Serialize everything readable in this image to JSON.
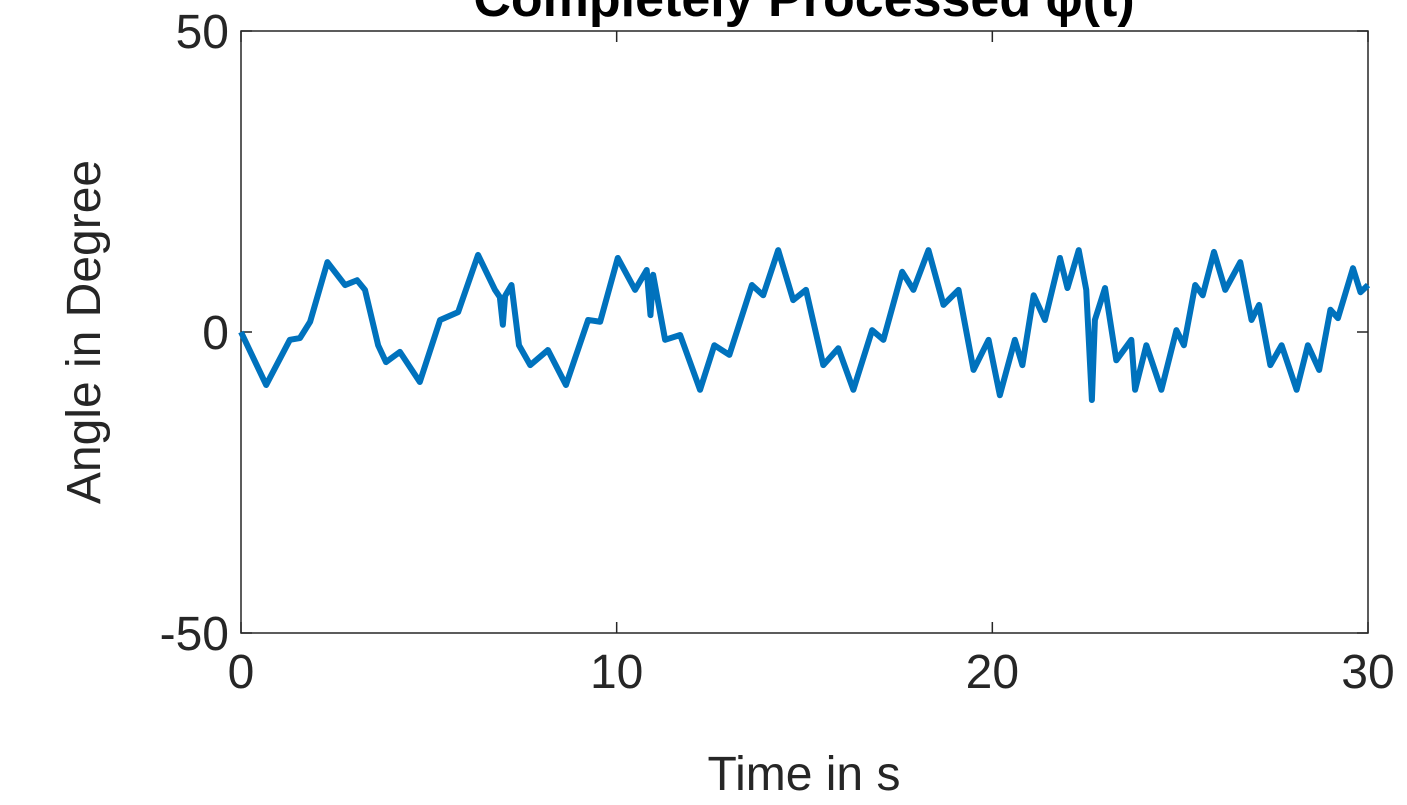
{
  "chart_data": {
    "type": "line",
    "title": "Completely Processed φ(t)",
    "xlabel": "Time in s",
    "ylabel": "Angle in Degree",
    "x": [
      0,
      0.67,
      1.3,
      1.57,
      1.84,
      2.3,
      2.77,
      3.09,
      3.3,
      3.65,
      3.86,
      4.23,
      4.76,
      5.3,
      5.78,
      6.31,
      6.76,
      6.89,
      6.97,
      7.03,
      7.2,
      7.4,
      7.7,
      8.17,
      8.65,
      9.24,
      9.56,
      10.03,
      10.49,
      10.8,
      10.9,
      10.97,
      11.29,
      11.69,
      12.22,
      12.6,
      13.0,
      13.6,
      13.9,
      14.3,
      14.7,
      15.04,
      15.5,
      15.9,
      16.3,
      16.8,
      17.1,
      17.6,
      17.9,
      18.3,
      18.7,
      19.1,
      19.5,
      19.9,
      20.2,
      20.6,
      20.8,
      21.1,
      21.4,
      21.8,
      22.0,
      22.3,
      22.5,
      22.65,
      22.73,
      23.0,
      23.3,
      23.7,
      23.8,
      24.1,
      24.5,
      24.9,
      25.1,
      25.4,
      25.6,
      25.9,
      26.2,
      26.6,
      26.9,
      27.1,
      27.4,
      27.7,
      28.1,
      28.4,
      28.7,
      29.0,
      29.2,
      29.6,
      29.8,
      30
    ],
    "series": [
      {
        "name": "phi",
        "color": "#0072bd",
        "values": [
          0,
          -8.8,
          -1.3,
          -1,
          1.7,
          11.6,
          7.8,
          8.6,
          7,
          -2.2,
          -5,
          -3.3,
          -8.3,
          2,
          3.3,
          12.8,
          7,
          5.8,
          1.2,
          6,
          7.8,
          -2.2,
          -5.5,
          -3,
          -8.8,
          2,
          1.7,
          12.3,
          7,
          10.3,
          2.8,
          9.5,
          -1.3,
          -0.5,
          -9.6,
          -2.2,
          -3.8,
          7.8,
          6.1,
          13.6,
          5.3,
          7,
          -5.5,
          -2.7,
          -9.6,
          0.3,
          -1.3,
          10,
          7,
          13.6,
          4.5,
          7,
          -6.3,
          -1.3,
          -10.5,
          -1.3,
          -5.5,
          6.1,
          2,
          12.3,
          7.3,
          13.6,
          7,
          -11.3,
          2,
          7.3,
          -4.7,
          -1.3,
          -9.6,
          -2.2,
          -9.6,
          0.3,
          -2.2,
          7.8,
          6.1,
          13.3,
          7,
          11.6,
          2,
          4.5,
          -5.5,
          -2.2,
          -9.6,
          -2.2,
          -6.3,
          3.7,
          2.3,
          10.6,
          6.6,
          7.8
        ]
      }
    ],
    "xlim": [
      0,
      30
    ],
    "xticks": [
      0,
      10,
      20,
      30
    ],
    "ylim": [
      -50,
      50
    ],
    "yticks": [
      -50,
      0,
      50
    ],
    "grid": false
  }
}
